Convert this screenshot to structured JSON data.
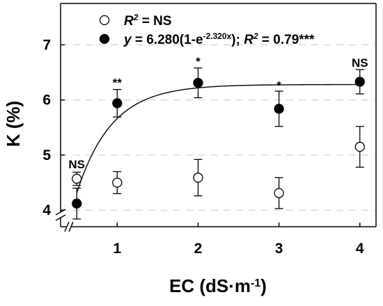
{
  "chart_data": {
    "type": "scatter",
    "xlabel": {
      "main": "EC (dS·m",
      "sup": "-1",
      "tail": ")"
    },
    "ylabel": "K (%)",
    "xlim": [
      0.3,
      4.2
    ],
    "ylim": [
      3.7,
      7.75
    ],
    "xticks": [
      1,
      2,
      3,
      4
    ],
    "yticks": [
      4,
      5,
      6,
      7
    ],
    "grid": "horizontal dashed",
    "legend_position": "top-left",
    "series": [
      {
        "marker": "open-circle",
        "legend": {
          "parts": [
            {
              "text": "R",
              "italic": true
            },
            {
              "text": "2",
              "sup": true,
              "italic": true
            },
            {
              "text": " = NS"
            }
          ]
        },
        "points": [
          {
            "x": 0.5,
            "y": 4.57,
            "err": 0.12
          },
          {
            "x": 1,
            "y": 4.5,
            "err": 0.2
          },
          {
            "x": 2,
            "y": 4.59,
            "err": 0.33
          },
          {
            "x": 3,
            "y": 4.31,
            "err": 0.28
          },
          {
            "x": 4,
            "y": 5.15,
            "err": 0.37
          }
        ]
      },
      {
        "marker": "filled-circle",
        "legend": {
          "parts": [
            {
              "text": "y",
              "italic": true
            },
            {
              "text": " = 6.280(1-e"
            },
            {
              "text": "-2.320x",
              "sup": true
            },
            {
              "text": "); "
            },
            {
              "text": "R",
              "italic": true
            },
            {
              "text": "2",
              "sup": true,
              "italic": true
            },
            {
              "text": " = 0.79***"
            }
          ]
        },
        "points": [
          {
            "x": 0.5,
            "y": 4.12,
            "err": 0.28
          },
          {
            "x": 1,
            "y": 5.94,
            "err": 0.25
          },
          {
            "x": 2,
            "y": 6.31,
            "err": 0.27
          },
          {
            "x": 3,
            "y": 5.84,
            "err": 0.32
          },
          {
            "x": 4,
            "y": 6.33,
            "err": 0.22
          }
        ],
        "fit": {
          "a": 6.28,
          "b": 2.32,
          "x_start": 0.5,
          "x_end": 4
        }
      }
    ],
    "annotations": [
      {
        "x": 0.5,
        "y": 4.76,
        "text": "NS"
      },
      {
        "x": 1,
        "y": 6.24,
        "text": "**"
      },
      {
        "x": 2,
        "y": 6.63,
        "text": "*"
      },
      {
        "x": 3,
        "y": 6.19,
        "text": "*"
      },
      {
        "x": 4,
        "y": 6.6,
        "text": "NS"
      }
    ]
  }
}
